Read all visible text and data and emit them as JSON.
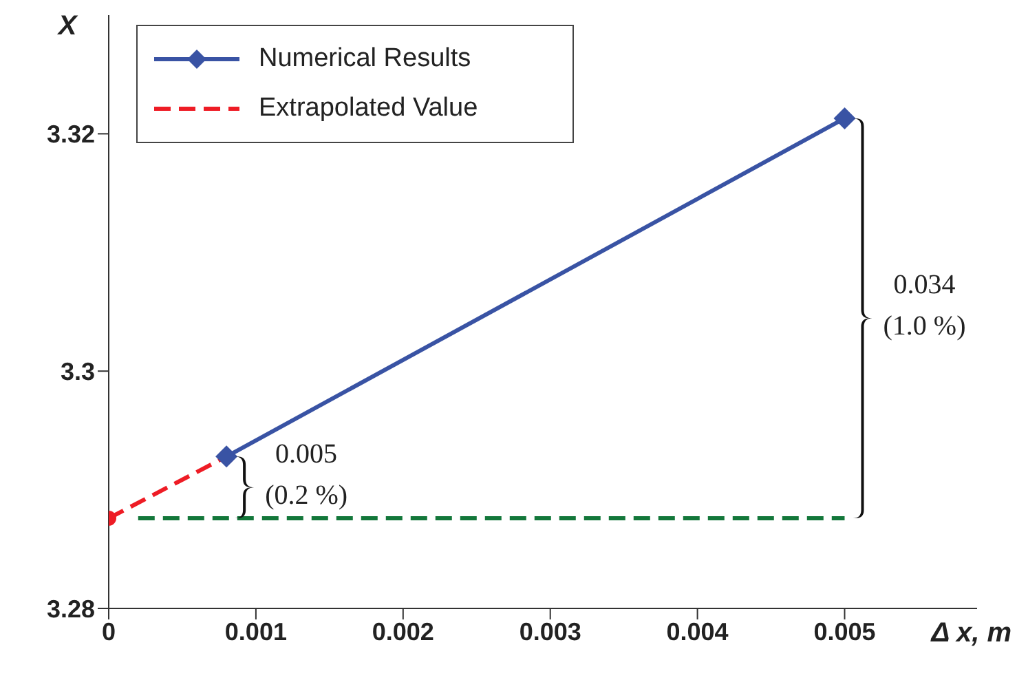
{
  "chart_data": {
    "type": "line",
    "xlabel": "Δ x, m",
    "ylabel": "X",
    "xlim": [
      0,
      0.0059
    ],
    "xticks": [
      0,
      0.001,
      0.002,
      0.003,
      0.004,
      0.005
    ],
    "ylim": [
      3.28,
      3.33
    ],
    "yticks": [
      3.28,
      3.3,
      3.32
    ],
    "series": [
      {
        "name": "Extrapolated Value",
        "color": "#ee1c25",
        "x": [
          0,
          0.0008
        ],
        "values": [
          3.2876,
          3.2928
        ],
        "line_style": "dashed",
        "marker": "circle"
      },
      {
        "name": "Numerical Results",
        "color": "#3953a4",
        "x": [
          0.0008,
          0.005
        ],
        "values": [
          3.2928,
          3.3213
        ],
        "line_style": "solid",
        "marker": "diamond"
      },
      {
        "color": "#13773a",
        "x": [
          0.0002,
          0.005
        ],
        "values": [
          3.2876,
          3.2876
        ],
        "line_style": "dashed",
        "marker": "none"
      }
    ],
    "annotations": [
      "0.005\n(0.2 %)",
      "0.034\n(1.0 %)"
    ],
    "grid": false,
    "legend": "top left"
  }
}
